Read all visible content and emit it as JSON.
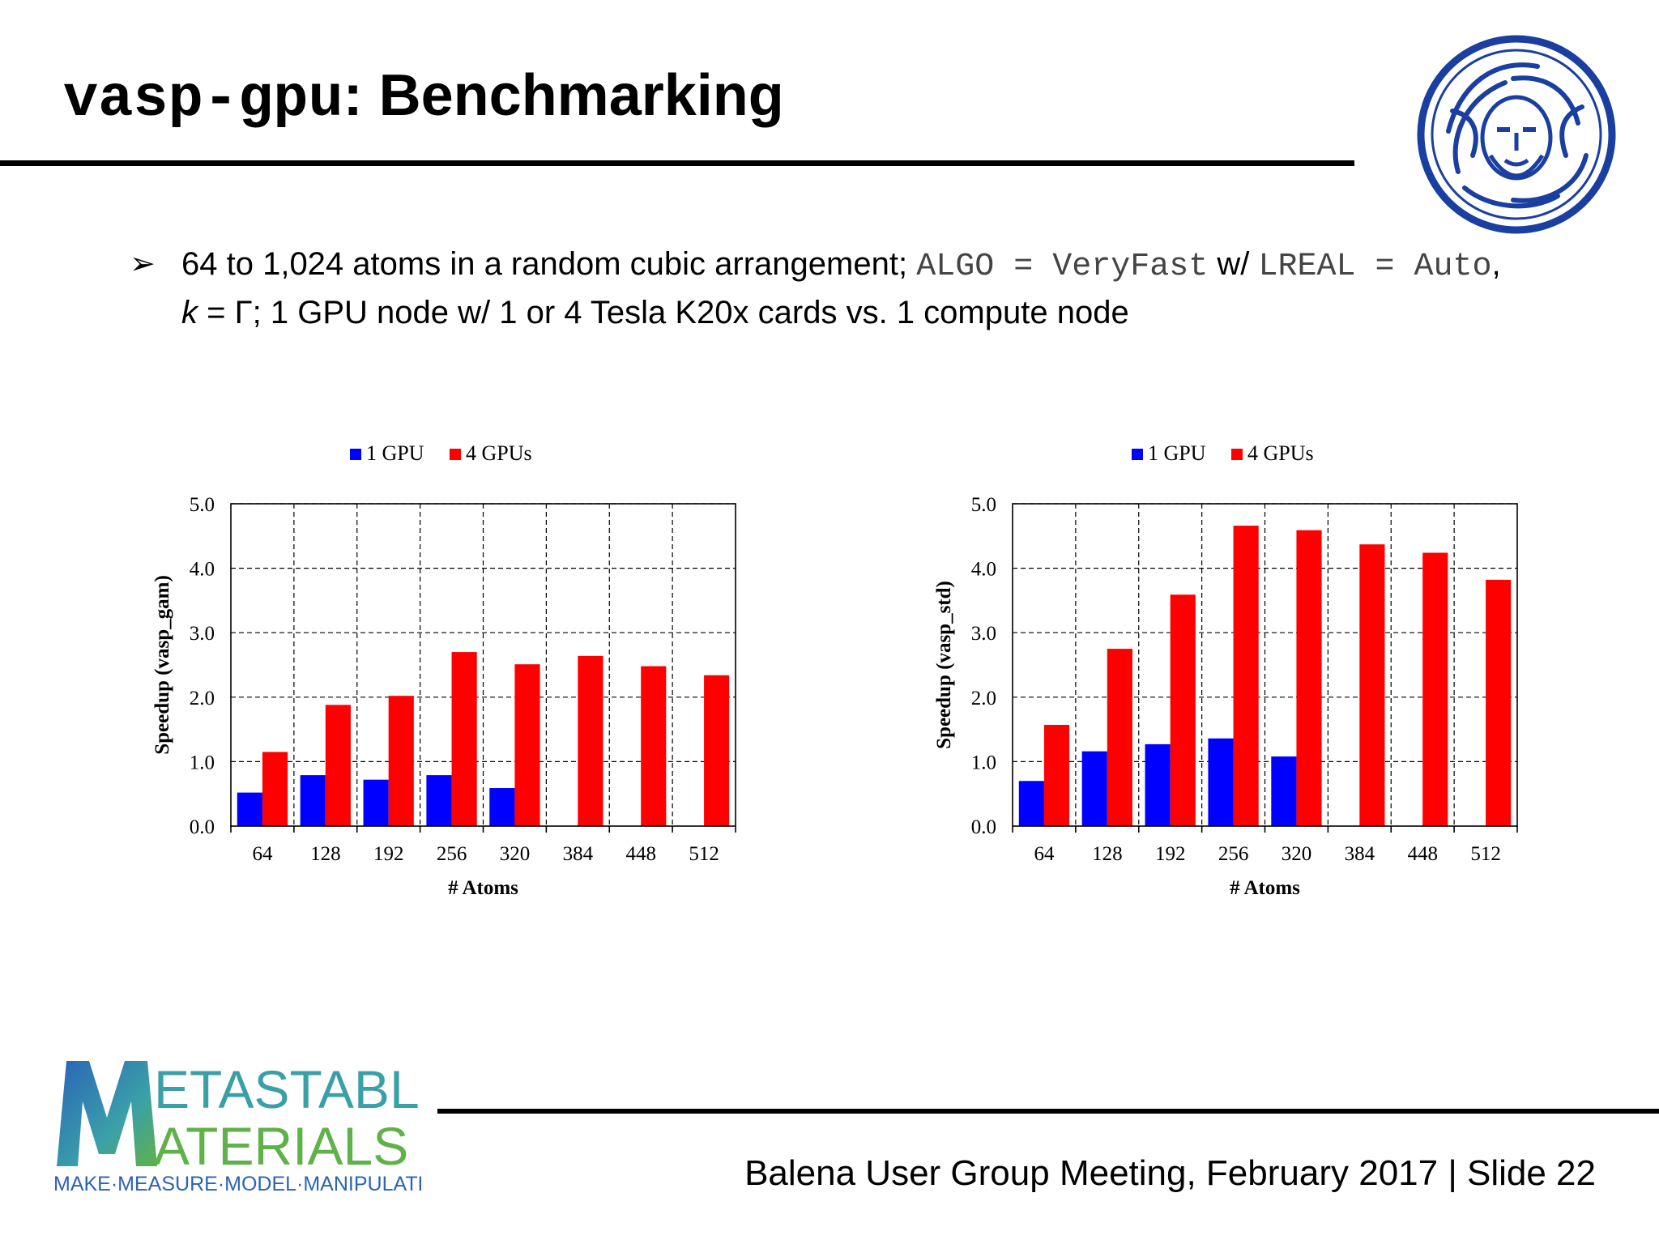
{
  "slide": {
    "title_code": "vasp-gpu",
    "title_rest": ": Benchmarking",
    "bullet": {
      "t1": "64 to 1,024 atoms in a random cubic arrangement; ",
      "c1": "ALGO = VeryFast",
      "t2": " w/ ",
      "c2": "LREAL = Auto",
      "t3": ", ",
      "k": "k",
      "t4": " = Γ; 1 GPU node w/ 1 or 4 Tesla K20x cards vs. 1 compute node"
    },
    "footer": "Balena User Group Meeting, February 2017 | Slide 22",
    "logo": {
      "line1": "ETASTABLE",
      "line2": "ATERIALS",
      "tagline": "MAKE·MEASURE·MODEL·MANIPULATE"
    },
    "colors": {
      "gpu1": "#0000ff",
      "gpu4": "#ff0000",
      "seal": "#1a3fa0",
      "logo_blue": "#2a63b8",
      "logo_green": "#5fb14a"
    }
  },
  "chart_data": [
    {
      "type": "bar",
      "categories": [
        "64",
        "128",
        "192",
        "256",
        "320",
        "384",
        "448",
        "512"
      ],
      "series": [
        {
          "name": "1 GPU",
          "values": [
            0.52,
            0.79,
            0.72,
            0.79,
            0.59,
            null,
            null,
            null
          ]
        },
        {
          "name": "4 GPUs",
          "values": [
            1.15,
            1.88,
            2.02,
            2.7,
            2.51,
            2.64,
            2.48,
            2.34
          ]
        }
      ],
      "xlabel": "# Atoms",
      "ylabel": "Speedup (vasp_gam)",
      "ylim": [
        0,
        5
      ],
      "yticks": [
        "0.0",
        "1.0",
        "2.0",
        "3.0",
        "4.0",
        "5.0"
      ],
      "grid": true,
      "legend": "top"
    },
    {
      "type": "bar",
      "categories": [
        "64",
        "128",
        "192",
        "256",
        "320",
        "384",
        "448",
        "512"
      ],
      "series": [
        {
          "name": "1 GPU",
          "values": [
            0.7,
            1.16,
            1.27,
            1.36,
            1.08,
            null,
            null,
            null
          ]
        },
        {
          "name": "4 GPUs",
          "values": [
            1.57,
            2.75,
            3.59,
            4.66,
            4.59,
            4.37,
            4.24,
            3.82
          ]
        }
      ],
      "xlabel": "# Atoms",
      "ylabel": "Speedup (vasp_std)",
      "ylim": [
        0,
        5
      ],
      "yticks": [
        "0.0",
        "1.0",
        "2.0",
        "3.0",
        "4.0",
        "5.0"
      ],
      "grid": true,
      "legend": "top"
    }
  ]
}
